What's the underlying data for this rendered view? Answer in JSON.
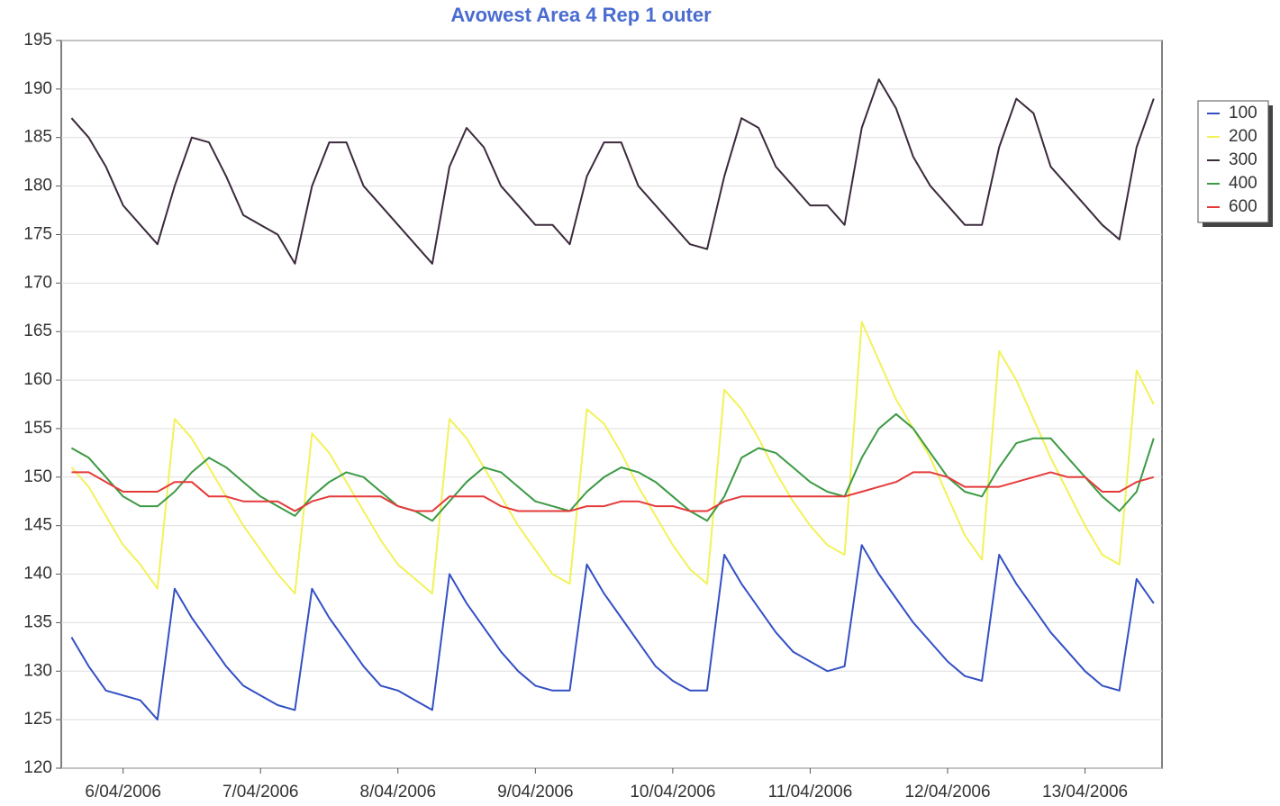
{
  "chart_data": {
    "type": "line",
    "title": "Avowest Area 4 Rep 1 outer",
    "x": [
      5.625,
      5.75,
      5.875,
      6,
      6.125,
      6.25,
      6.375,
      6.5,
      6.625,
      6.75,
      6.875,
      7,
      7.125,
      7.25,
      7.375,
      7.5,
      7.625,
      7.75,
      7.875,
      8,
      8.125,
      8.25,
      8.375,
      8.5,
      8.625,
      8.75,
      8.875,
      9,
      9.125,
      9.25,
      9.375,
      9.5,
      9.625,
      9.75,
      9.875,
      10,
      10.125,
      10.25,
      10.375,
      10.5,
      10.625,
      10.75,
      10.875,
      11,
      11.125,
      11.25,
      11.375,
      11.5,
      11.625,
      11.75,
      11.875,
      12,
      12.125,
      12.25,
      12.375,
      12.5,
      12.625,
      12.75,
      12.875,
      13,
      13.125,
      13.25,
      13.375,
      13.5
    ],
    "series": [
      {
        "name": "100",
        "color": "#3350c4",
        "values": [
          133.5,
          130.5,
          128,
          127.5,
          127,
          125,
          138.5,
          135.5,
          133,
          130.5,
          128.5,
          127.5,
          126.5,
          126,
          138.5,
          135.5,
          133,
          130.5,
          128.5,
          128,
          127,
          126,
          140,
          137,
          134.5,
          132,
          130,
          128.5,
          128,
          128,
          141,
          138,
          135.5,
          133,
          130.5,
          129,
          128,
          128,
          142,
          139,
          136.5,
          134,
          132,
          131,
          130,
          130.5,
          143,
          140,
          137.5,
          135,
          133,
          131,
          129.5,
          129,
          142,
          139,
          136.5,
          134,
          132,
          130,
          128.5,
          128,
          139.5,
          137
        ]
      },
      {
        "name": "200",
        "color": "#f2f25a",
        "values": [
          151,
          149,
          146,
          143,
          141,
          138.5,
          156,
          154,
          151,
          148,
          145,
          142.5,
          140,
          138,
          154.5,
          152.5,
          149.5,
          146.5,
          143.5,
          141,
          139.5,
          138,
          156,
          154,
          151,
          148,
          145,
          142.5,
          140,
          139,
          157,
          155.5,
          152.5,
          149,
          146,
          143,
          140.5,
          139,
          159,
          157,
          154,
          150.5,
          147.5,
          145,
          143,
          142,
          166,
          162,
          158,
          155,
          152,
          148,
          144,
          141.5,
          163,
          160,
          156,
          152,
          148.5,
          145,
          142,
          141,
          161,
          157.5
        ]
      },
      {
        "name": "300",
        "color": "#3b2a3c",
        "values": [
          187,
          185,
          182,
          178,
          176,
          174,
          180,
          185,
          184.5,
          181,
          177,
          176,
          175,
          172,
          180,
          184.5,
          184.5,
          180,
          178,
          176,
          174,
          172,
          182,
          186,
          184,
          180,
          178,
          176,
          176,
          174,
          181,
          184.5,
          184.5,
          180,
          178,
          176,
          174,
          173.5,
          181,
          187,
          186,
          182,
          180,
          178,
          178,
          176,
          186,
          191,
          188,
          183,
          180,
          178,
          176,
          176,
          184,
          189,
          187.5,
          182,
          180,
          178,
          176,
          174.5,
          184,
          189
        ]
      },
      {
        "name": "400",
        "color": "#3c9a44",
        "values": [
          153,
          152,
          150,
          148,
          147,
          147,
          148.5,
          150.5,
          152,
          151,
          149.5,
          148,
          147,
          146,
          148,
          149.5,
          150.5,
          150,
          148.5,
          147,
          146.5,
          145.5,
          147.5,
          149.5,
          151,
          150.5,
          149,
          147.5,
          147,
          146.5,
          148.5,
          150,
          151,
          150.5,
          149.5,
          148,
          146.5,
          145.5,
          148,
          152,
          153,
          152.5,
          151,
          149.5,
          148.5,
          148,
          152,
          155,
          156.5,
          155,
          152.5,
          150,
          148.5,
          148,
          151,
          153.5,
          154,
          154,
          152,
          150,
          148,
          146.5,
          148.5,
          154
        ]
      },
      {
        "name": "600",
        "color": "#e53a3a",
        "values": [
          150.5,
          150.5,
          149.5,
          148.5,
          148.5,
          148.5,
          149.5,
          149.5,
          148,
          148,
          147.5,
          147.5,
          147.5,
          146.5,
          147.5,
          148,
          148,
          148,
          148,
          147,
          146.5,
          146.5,
          148,
          148,
          148,
          147,
          146.5,
          146.5,
          146.5,
          146.5,
          147,
          147,
          147.5,
          147.5,
          147,
          147,
          146.5,
          146.5,
          147.5,
          148,
          148,
          148,
          148,
          148,
          148,
          148,
          148.5,
          149,
          149.5,
          150.5,
          150.5,
          150,
          149,
          149,
          149,
          149.5,
          150,
          150.5,
          150,
          150,
          148.5,
          148.5,
          149.5,
          150
        ]
      }
    ],
    "xlim": [
      5.55,
      13.56
    ],
    "xticks": [
      {
        "value": 6,
        "label": "6/04/2006"
      },
      {
        "value": 7,
        "label": "7/04/2006"
      },
      {
        "value": 8,
        "label": "8/04/2006"
      },
      {
        "value": 9,
        "label": "9/04/2006"
      },
      {
        "value": 10,
        "label": "10/04/2006"
      },
      {
        "value": 11,
        "label": "11/04/2006"
      },
      {
        "value": 12,
        "label": "12/04/2006"
      },
      {
        "value": 13,
        "label": "13/04/2006"
      }
    ],
    "ylim": [
      120,
      195
    ],
    "yticks": [
      120,
      125,
      130,
      135,
      140,
      145,
      150,
      155,
      160,
      165,
      170,
      175,
      180,
      185,
      190,
      195
    ],
    "grid": true,
    "legend": "right"
  }
}
